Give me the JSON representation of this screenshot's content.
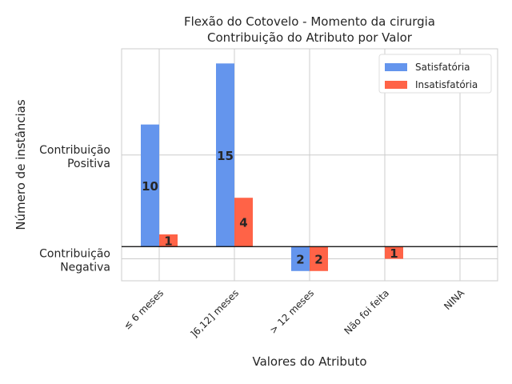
{
  "chart_data": {
    "type": "bar",
    "title": "Flexão do Cotovelo - Momento da cirurgia",
    "subtitle": "Contribuição do Atributo por Valor",
    "xlabel": "Valores do Atributo",
    "ylabel": "Número de instâncias",
    "categories": [
      "≤ 6 meses",
      "]6,12] meses",
      "> 12 meses",
      "Não foi feita",
      "NINA"
    ],
    "series": [
      {
        "name": "Satisfatória",
        "color": "#6495ED",
        "values": [
          10,
          15,
          -2,
          0,
          0
        ]
      },
      {
        "name": "Insatisfatória",
        "color": "#FF6347",
        "values": [
          1,
          4,
          -2,
          -1,
          0
        ]
      }
    ],
    "data_labels": [
      [
        "10",
        "15",
        "2",
        "",
        ""
      ],
      [
        "1",
        "4",
        "2",
        "1",
        ""
      ]
    ],
    "ytick_labels": [
      {
        "value": 7.5,
        "lines": [
          "Contribuição",
          "Positiva"
        ]
      },
      {
        "value": -1,
        "lines": [
          "Contribuição",
          "Negativa"
        ]
      }
    ],
    "ylim": [
      -2.8,
      16.2
    ],
    "zero_line": true,
    "grid": true,
    "legend_position": "top-right"
  }
}
